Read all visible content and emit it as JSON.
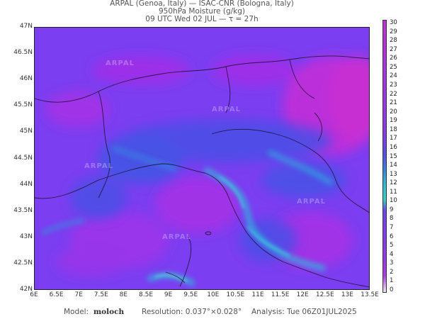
{
  "header": {
    "line1": "ARPAL (Genoa, Italy)  —  ISAC-CNR (Bologna, Italy)",
    "line2": "950hPa Moisture (g/kg)",
    "line3": "09 UTC Wed 02 JUL  —  τ = 27h"
  },
  "map": {
    "lat_labels": [
      "47N",
      "46.5N",
      "46N",
      "45.5N",
      "45N",
      "44.5N",
      "44N",
      "43.5N",
      "43N",
      "42.5N",
      "42N"
    ],
    "lon_labels": [
      "6E",
      "6.5E",
      "7E",
      "7.5E",
      "8E",
      "8.5E",
      "9E",
      "9.5E",
      "10E",
      "10.5E",
      "11E",
      "11.5E",
      "12E",
      "12.5E",
      "13E",
      "13.5E"
    ],
    "lat_range": [
      42,
      47
    ],
    "lon_range": [
      6,
      13.5
    ],
    "watermark": "ARPAL",
    "colors": {
      "background": "#7b3ef0",
      "dry": "#a531e6",
      "moist": "#3a5fe0",
      "wet": "#2fb6dc"
    }
  },
  "colorbar": {
    "labels": [
      "30",
      "29",
      "28",
      "27",
      "26",
      "25",
      "24",
      "23",
      "22",
      "21",
      "20",
      "19",
      "18",
      "17",
      "16",
      "15",
      "14",
      "13",
      "12",
      "11",
      "10",
      "9",
      "8",
      "7",
      "6",
      "5",
      "4",
      "3",
      "2",
      "1",
      "0"
    ],
    "min": 0,
    "max": 30
  },
  "footer": {
    "model_label": "Model:",
    "model_name": "moloch",
    "resolution": "Resolution: 0.037°×0.028°",
    "analysis": "Analysis: Tue 06Z01JUL2025"
  }
}
